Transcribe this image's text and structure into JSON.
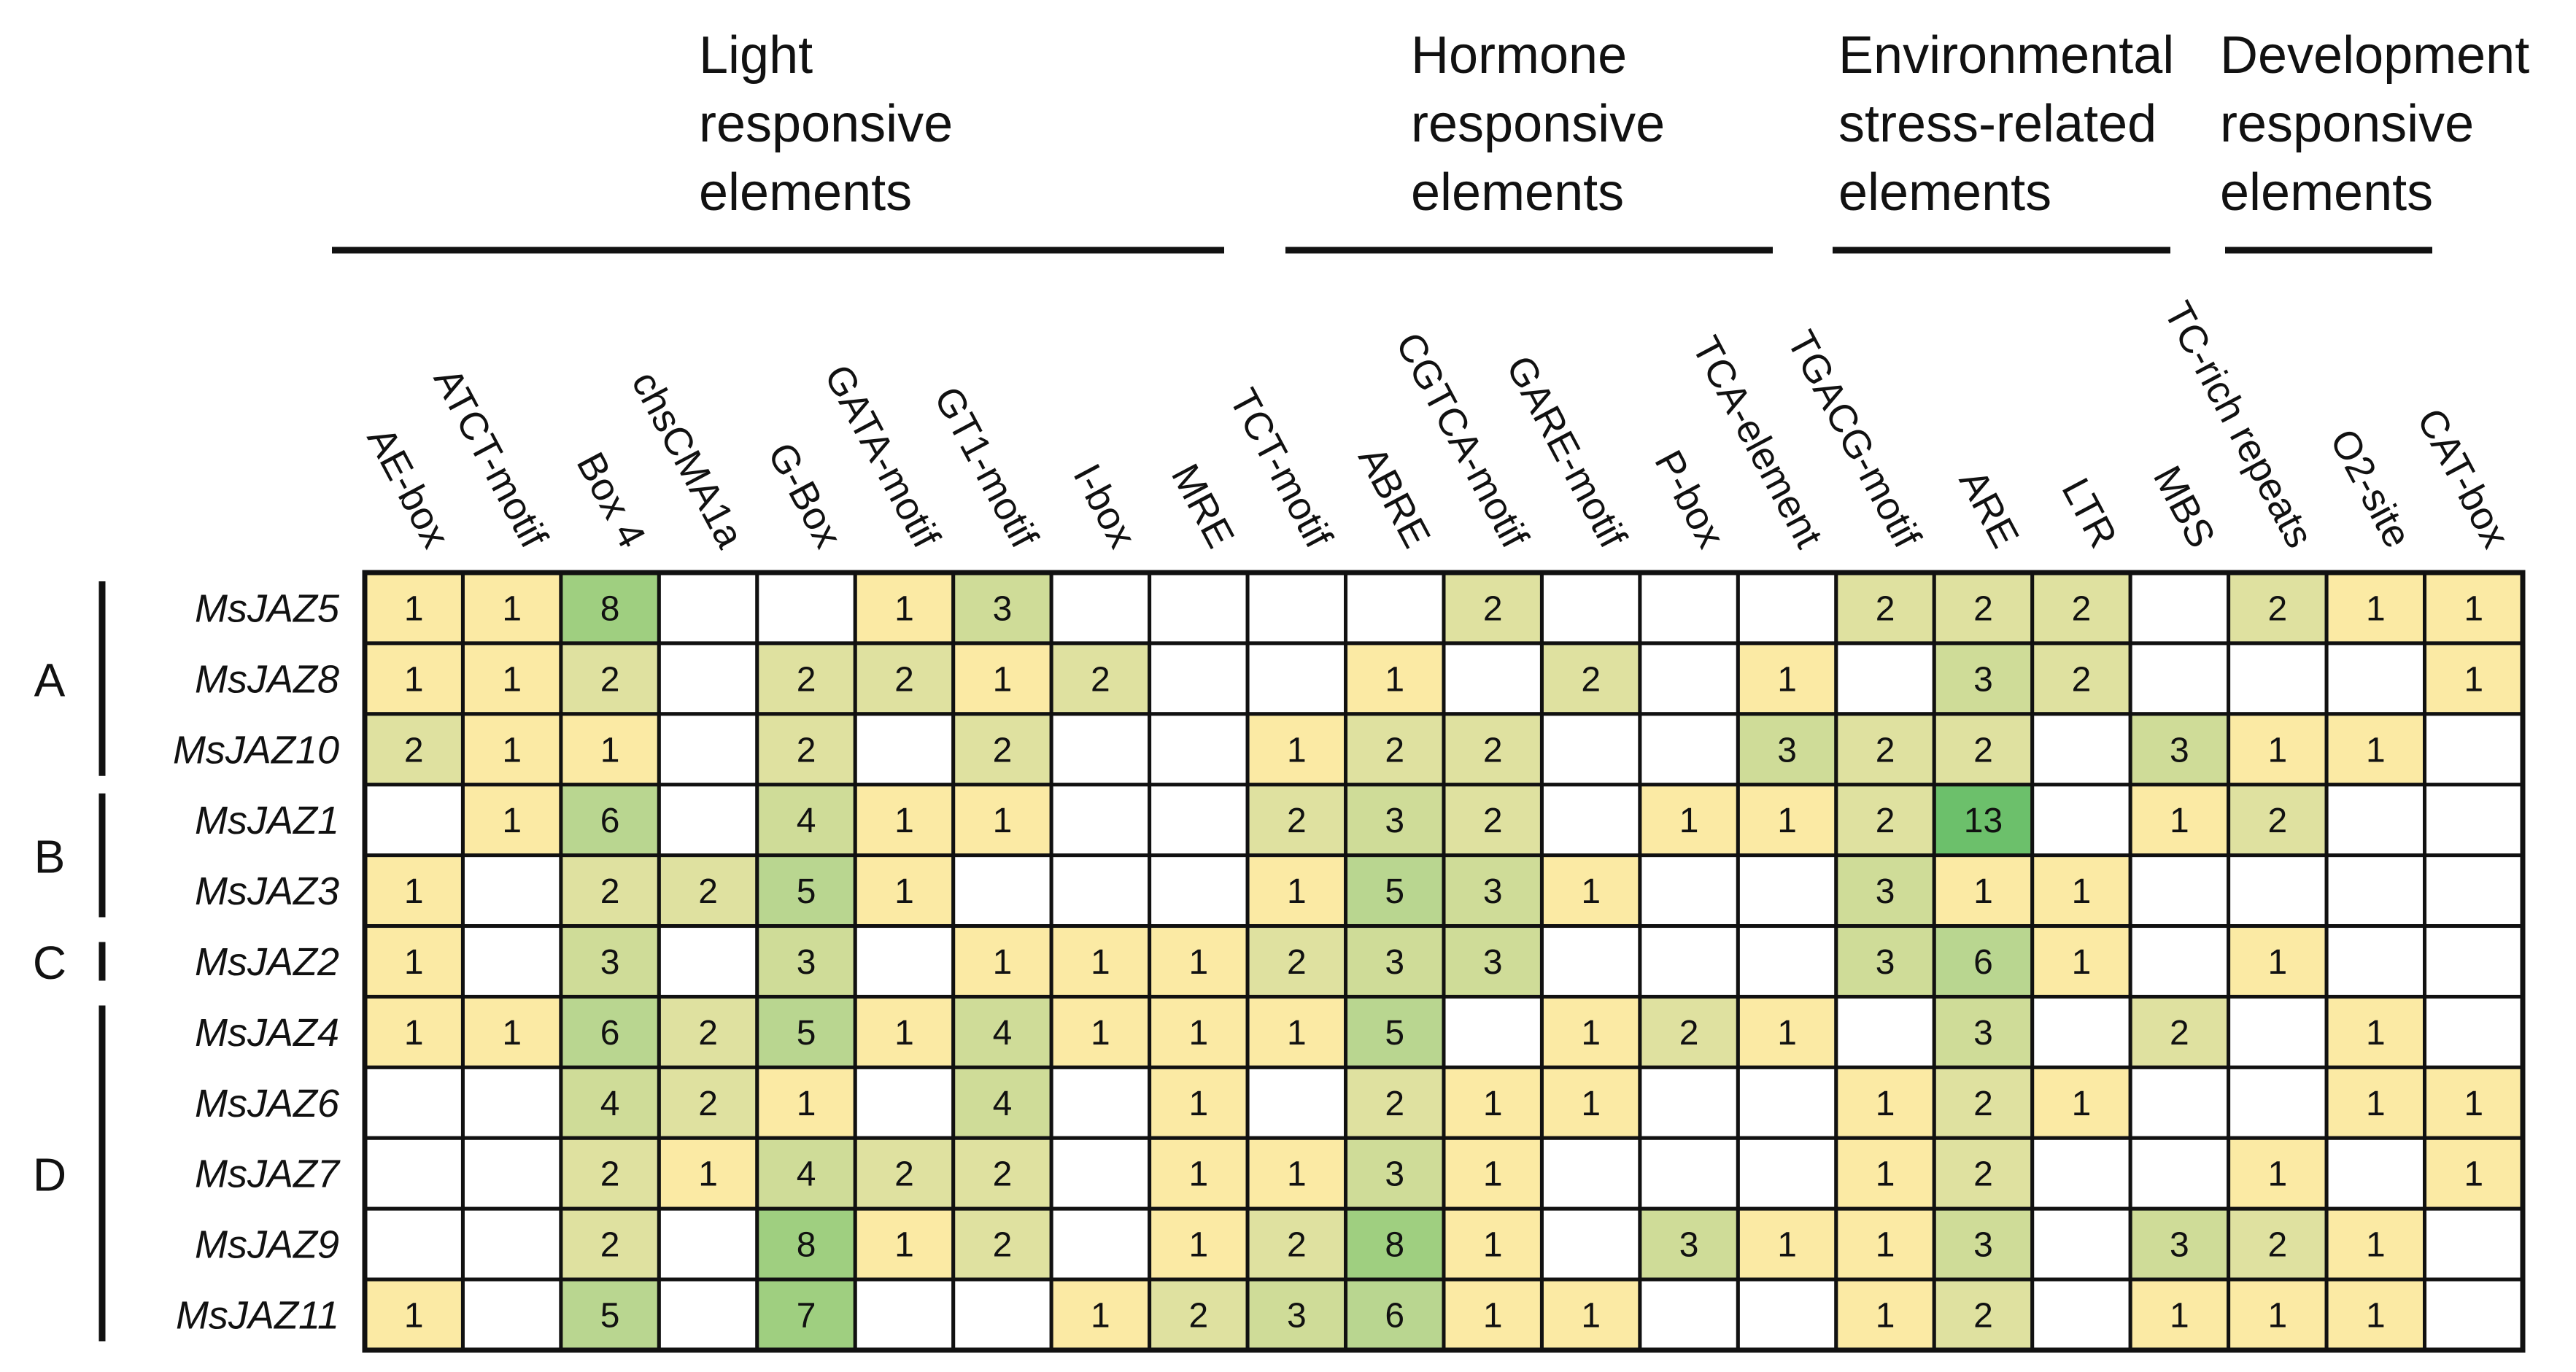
{
  "chart_data": {
    "type": "heatmap",
    "title": "",
    "color_scale": {
      "empty": "#ffffff",
      "stops": [
        "#fbeaa4",
        "#f5e69a",
        "#dfe1a0",
        "#cfdc98",
        "#b9d690",
        "#9fcf80",
        "#6cc06b"
      ],
      "max_value": 13,
      "grid_color": "#111111"
    },
    "column_groups": [
      {
        "label": [
          "Light",
          "responsive",
          "elements"
        ],
        "span": [
          0,
          8
        ]
      },
      {
        "label": [
          "Hormone",
          "responsive",
          "elements"
        ],
        "span": [
          9,
          14
        ]
      },
      {
        "label": [
          "Environmental",
          "stress-related",
          "elements"
        ],
        "span": [
          15,
          18
        ]
      },
      {
        "label": [
          "Development",
          "responsive",
          "elements"
        ],
        "span": [
          19,
          21
        ]
      }
    ],
    "columns": [
      "AE-box",
      "ATCT-motif",
      "Box 4",
      "chsCMA1a",
      "G-Box",
      "GATA-motif",
      "GT1-motif",
      "I-box",
      "MRE",
      "TCT-motif",
      "ABRE",
      "CGTCA-motif",
      "GARE-motif",
      "P-box",
      "TCA-element",
      "TGACG-motif",
      "ARE",
      "LTR",
      "MBS",
      "TC-rich repeats",
      "O2-site",
      "CAT-box"
    ],
    "rows": [
      "MsJAZ5",
      "MsJAZ8",
      "MsJAZ10",
      "MsJAZ1",
      "MsJAZ3",
      "MsJAZ2",
      "MsJAZ4",
      "MsJAZ6",
      "MsJAZ7",
      "MsJAZ9",
      "MsJAZ11"
    ],
    "clades": [
      {
        "label": "A",
        "rows": [
          0,
          2
        ]
      },
      {
        "label": "B",
        "rows": [
          3,
          4
        ]
      },
      {
        "label": "C",
        "rows": [
          5,
          5
        ]
      },
      {
        "label": "D",
        "rows": [
          6,
          10
        ]
      }
    ],
    "values": [
      [
        1,
        1,
        8,
        null,
        null,
        1,
        3,
        null,
        null,
        null,
        null,
        2,
        null,
        null,
        null,
        2,
        2,
        2,
        null,
        2,
        1,
        1
      ],
      [
        1,
        1,
        2,
        null,
        2,
        2,
        1,
        2,
        null,
        null,
        1,
        null,
        2,
        null,
        1,
        null,
        3,
        2,
        null,
        null,
        null,
        1
      ],
      [
        2,
        1,
        1,
        null,
        2,
        null,
        2,
        null,
        null,
        1,
        2,
        2,
        null,
        null,
        3,
        2,
        2,
        null,
        3,
        1,
        1,
        null
      ],
      [
        null,
        1,
        6,
        null,
        4,
        1,
        1,
        null,
        null,
        2,
        3,
        2,
        null,
        1,
        1,
        2,
        13,
        null,
        1,
        2,
        null,
        null
      ],
      [
        1,
        null,
        2,
        2,
        5,
        1,
        null,
        null,
        null,
        1,
        5,
        3,
        1,
        null,
        null,
        3,
        1,
        1,
        null,
        null,
        null,
        null
      ],
      [
        1,
        null,
        3,
        null,
        3,
        null,
        1,
        1,
        1,
        2,
        3,
        3,
        null,
        null,
        null,
        3,
        6,
        1,
        null,
        1,
        null,
        null
      ],
      [
        1,
        1,
        6,
        2,
        5,
        1,
        4,
        1,
        1,
        1,
        5,
        null,
        1,
        2,
        1,
        null,
        3,
        null,
        2,
        null,
        1,
        null
      ],
      [
        null,
        null,
        4,
        2,
        1,
        null,
        4,
        null,
        1,
        null,
        2,
        1,
        1,
        null,
        null,
        1,
        2,
        1,
        null,
        null,
        1,
        1
      ],
      [
        null,
        null,
        2,
        1,
        4,
        2,
        2,
        null,
        1,
        1,
        3,
        1,
        null,
        null,
        null,
        1,
        2,
        null,
        null,
        1,
        null,
        1
      ],
      [
        null,
        null,
        2,
        null,
        8,
        1,
        2,
        null,
        1,
        2,
        8,
        1,
        null,
        3,
        1,
        1,
        3,
        null,
        3,
        2,
        1,
        null
      ],
      [
        1,
        null,
        5,
        null,
        7,
        null,
        null,
        1,
        2,
        3,
        6,
        1,
        1,
        null,
        null,
        1,
        2,
        null,
        1,
        1,
        1,
        null
      ]
    ]
  }
}
